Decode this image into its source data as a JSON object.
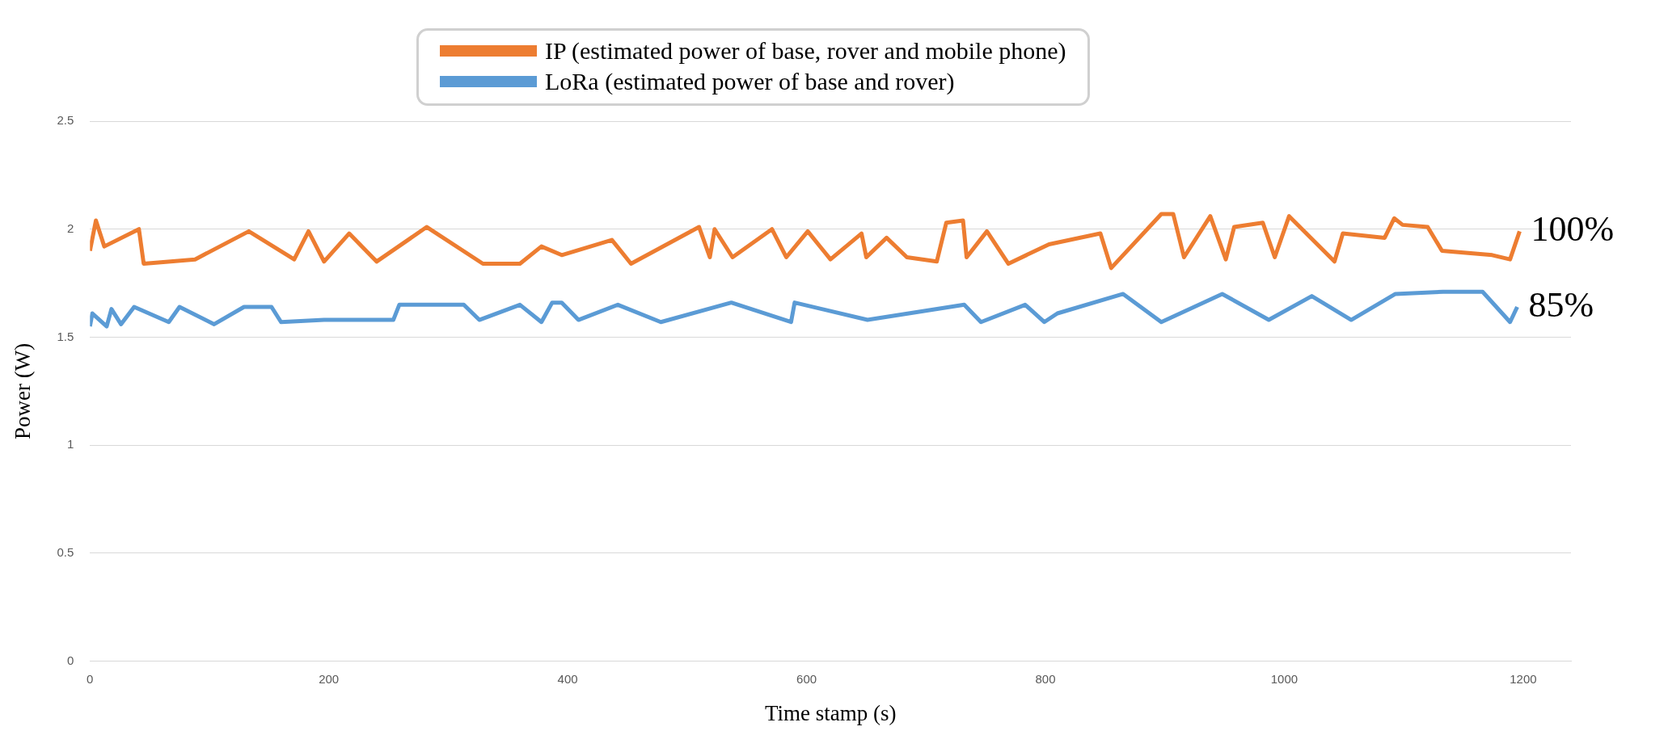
{
  "chart_data": {
    "type": "line",
    "xlabel": "Time stamp (s)",
    "ylabel": "Power (W)",
    "xlim": [
      0,
      1240
    ],
    "xticks": [
      0,
      200,
      400,
      600,
      800,
      1000,
      1200
    ],
    "ylim": [
      0,
      2.5
    ],
    "yticks": [
      0,
      0.5,
      1,
      1.5,
      2,
      2.5
    ],
    "grid": "y",
    "legend": "top",
    "marker": "none",
    "line_style": "solid",
    "annotations": [
      {
        "text": "100%",
        "x": 1197,
        "y": 1.99
      },
      {
        "text": "85%",
        "x": 1195,
        "y": 1.64
      }
    ],
    "series": [
      {
        "name": "IP (estimated power of base, rover and mobile phone)",
        "color": "#ed7d31",
        "x": [
          0,
          5,
          12,
          41,
          45,
          88,
          133,
          171,
          183,
          196,
          217,
          240,
          282,
          329,
          360,
          378,
          395,
          437,
          453,
          510,
          519,
          523,
          538,
          571,
          583,
          601,
          620,
          646,
          650,
          667,
          684,
          709,
          717,
          731,
          734,
          751,
          769,
          803,
          846,
          855,
          897,
          907,
          916,
          938,
          951,
          958,
          982,
          992,
          1004,
          1042,
          1049,
          1084,
          1092,
          1099,
          1120,
          1132,
          1174,
          1189,
          1197
        ],
        "values": [
          1.9,
          2.04,
          1.92,
          2.0,
          1.84,
          1.86,
          1.99,
          1.86,
          1.99,
          1.85,
          1.98,
          1.85,
          2.01,
          1.84,
          1.84,
          1.92,
          1.88,
          1.95,
          1.84,
          2.01,
          1.87,
          2.0,
          1.87,
          2.0,
          1.87,
          1.99,
          1.86,
          1.98,
          1.87,
          1.96,
          1.87,
          1.85,
          2.03,
          2.04,
          1.87,
          1.99,
          1.84,
          1.93,
          1.98,
          1.82,
          2.07,
          2.07,
          1.87,
          2.06,
          1.86,
          2.01,
          2.03,
          1.87,
          2.06,
          1.85,
          1.98,
          1.96,
          2.05,
          2.02,
          2.01,
          1.9,
          1.88,
          1.86,
          1.99
        ]
      },
      {
        "name": "LoRa (estimated power of base and rover)",
        "color": "#5b9bd5",
        "x": [
          0,
          2,
          14,
          18,
          26,
          37,
          66,
          75,
          104,
          129,
          152,
          160,
          196,
          254,
          259,
          313,
          326,
          360,
          378,
          387,
          395,
          409,
          442,
          478,
          537,
          587,
          590,
          651,
          732,
          746,
          783,
          799,
          810,
          865,
          897,
          948,
          987,
          1023,
          1056,
          1093,
          1133,
          1166,
          1189,
          1195
        ],
        "values": [
          1.55,
          1.61,
          1.55,
          1.63,
          1.56,
          1.64,
          1.57,
          1.64,
          1.56,
          1.64,
          1.64,
          1.57,
          1.58,
          1.58,
          1.65,
          1.65,
          1.58,
          1.65,
          1.57,
          1.66,
          1.66,
          1.58,
          1.65,
          1.57,
          1.66,
          1.57,
          1.66,
          1.58,
          1.65,
          1.57,
          1.65,
          1.57,
          1.61,
          1.7,
          1.57,
          1.7,
          1.58,
          1.69,
          1.58,
          1.7,
          1.71,
          1.71,
          1.57,
          1.64
        ]
      }
    ]
  }
}
